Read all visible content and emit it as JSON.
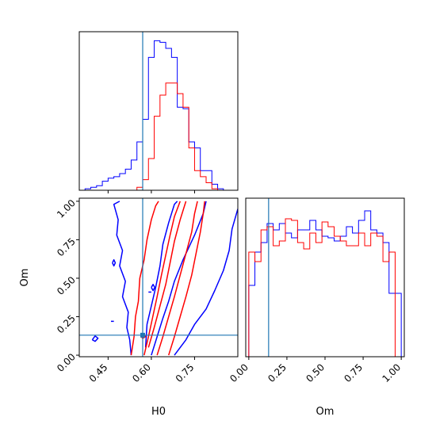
{
  "chart_data": [
    {
      "type": "step-histogram",
      "panel": "H0-marginal",
      "xlim": [
        0.35,
        0.9
      ],
      "x_edges": [
        0.35,
        0.37,
        0.39,
        0.41,
        0.43,
        0.45,
        0.47,
        0.49,
        0.51,
        0.53,
        0.55,
        0.57,
        0.59,
        0.61,
        0.63,
        0.65,
        0.67,
        0.69,
        0.71,
        0.73,
        0.75,
        0.77,
        0.79,
        0.81,
        0.83,
        0.85,
        0.87,
        0.89
      ],
      "series": [
        {
          "color": "#0000ff",
          "counts": [
            0,
            1,
            2,
            3,
            6,
            8,
            9,
            11,
            14,
            20,
            32,
            47,
            88,
            99,
            98,
            94,
            88,
            55,
            54,
            32,
            28,
            13,
            13,
            4,
            1,
            0,
            0
          ]
        },
        {
          "color": "#ff0000",
          "counts": [
            0,
            0,
            0,
            0,
            0,
            0,
            0,
            0,
            0,
            0,
            2,
            7,
            21,
            49,
            63,
            71,
            71,
            64,
            55,
            28,
            13,
            9,
            5,
            1,
            0,
            0,
            0
          ]
        }
      ],
      "ylim": [
        0,
        105
      ],
      "truth_line": 0.57
    },
    {
      "type": "contour",
      "panel": "H0-Om-joint",
      "xlim": [
        0.35,
        0.9
      ],
      "ylim": [
        -0.01,
        1.02
      ],
      "x_ticks": [
        "0.45",
        "0.60",
        "0.75"
      ],
      "x_tick_values": [
        0.45,
        0.6,
        0.75
      ],
      "y_ticks": [
        "0.00",
        "0.25",
        "0.50",
        "0.75",
        "1.00"
      ],
      "y_tick_values": [
        0,
        0.25,
        0.5,
        0.75,
        1.0
      ],
      "xlabel": "H0",
      "ylabel": "Om",
      "truth_lines": {
        "x": 0.57,
        "y": 0.13
      },
      "series": [
        {
          "color": "#0000ff",
          "contours": [
            [
              [
                0.53,
                0.0
              ],
              [
                0.525,
                0.1
              ],
              [
                0.515,
                0.18
              ],
              [
                0.52,
                0.28
              ],
              [
                0.5,
                0.38
              ],
              [
                0.51,
                0.48
              ],
              [
                0.49,
                0.58
              ],
              [
                0.5,
                0.68
              ],
              [
                0.48,
                0.78
              ],
              [
                0.485,
                0.88
              ],
              [
                0.47,
                0.98
              ],
              [
                0.49,
                1.0
              ]
            ],
            [
              [
                0.6,
                0.0
              ],
              [
                0.62,
                0.12
              ],
              [
                0.64,
                0.24
              ],
              [
                0.66,
                0.35
              ],
              [
                0.68,
                0.48
              ],
              [
                0.71,
                0.62
              ],
              [
                0.75,
                0.78
              ],
              [
                0.78,
                0.92
              ],
              [
                0.79,
                1.0
              ]
            ],
            [
              [
                0.58,
                0.05
              ],
              [
                0.585,
                0.2
              ],
              [
                0.6,
                0.32
              ],
              [
                0.615,
                0.44
              ],
              [
                0.63,
                0.58
              ],
              [
                0.64,
                0.72
              ],
              [
                0.66,
                0.86
              ],
              [
                0.68,
                0.98
              ],
              [
                0.69,
                1.0
              ]
            ],
            [
              [
                0.68,
                0.0
              ],
              [
                0.72,
                0.1
              ],
              [
                0.75,
                0.2
              ],
              [
                0.79,
                0.3
              ],
              [
                0.82,
                0.42
              ],
              [
                0.85,
                0.55
              ],
              [
                0.87,
                0.68
              ],
              [
                0.88,
                0.82
              ],
              [
                0.9,
                0.95
              ]
            ],
            [
              [
                0.395,
                0.1
              ],
              [
                0.405,
                0.125
              ],
              [
                0.415,
                0.11
              ],
              [
                0.405,
                0.09
              ],
              [
                0.395,
                0.1
              ]
            ],
            [
              [
                0.465,
                0.6
              ],
              [
                0.47,
                0.62
              ],
              [
                0.475,
                0.6
              ],
              [
                0.47,
                0.58
              ],
              [
                0.465,
                0.6
              ]
            ],
            [
              [
                0.6,
                0.44
              ],
              [
                0.606,
                0.46
              ],
              [
                0.612,
                0.44
              ],
              [
                0.606,
                0.42
              ],
              [
                0.6,
                0.44
              ]
            ],
            [
              [
                0.59,
                0.41
              ],
              [
                0.6,
                0.41
              ]
            ],
            [
              [
                0.46,
                0.22
              ],
              [
                0.47,
                0.22
              ]
            ]
          ]
        },
        {
          "color": "#ff0000",
          "contours": [
            [
              [
                0.53,
                0.0
              ],
              [
                0.54,
                0.12
              ],
              [
                0.545,
                0.25
              ],
              [
                0.555,
                0.35
              ],
              [
                0.56,
                0.5
              ],
              [
                0.575,
                0.62
              ],
              [
                0.585,
                0.75
              ],
              [
                0.6,
                0.88
              ],
              [
                0.615,
                0.97
              ],
              [
                0.625,
                1.0
              ]
            ],
            [
              [
                0.575,
                0.0
              ],
              [
                0.59,
                0.12
              ],
              [
                0.605,
                0.25
              ],
              [
                0.62,
                0.38
              ],
              [
                0.635,
                0.52
              ],
              [
                0.65,
                0.65
              ],
              [
                0.665,
                0.78
              ],
              [
                0.68,
                0.9
              ],
              [
                0.7,
                1.0
              ]
            ],
            [
              [
                0.59,
                0.05
              ],
              [
                0.61,
                0.18
              ],
              [
                0.63,
                0.32
              ],
              [
                0.65,
                0.46
              ],
              [
                0.665,
                0.6
              ],
              [
                0.68,
                0.74
              ],
              [
                0.7,
                0.88
              ],
              [
                0.72,
                1.0
              ]
            ],
            [
              [
                0.62,
                0.0
              ],
              [
                0.64,
                0.12
              ],
              [
                0.66,
                0.25
              ],
              [
                0.68,
                0.38
              ],
              [
                0.7,
                0.52
              ],
              [
                0.72,
                0.66
              ],
              [
                0.74,
                0.8
              ],
              [
                0.75,
                0.92
              ],
              [
                0.76,
                1.0
              ]
            ],
            [
              [
                0.66,
                0.0
              ],
              [
                0.68,
                0.12
              ],
              [
                0.7,
                0.25
              ],
              [
                0.72,
                0.38
              ],
              [
                0.74,
                0.52
              ],
              [
                0.755,
                0.66
              ],
              [
                0.77,
                0.8
              ],
              [
                0.78,
                0.92
              ],
              [
                0.785,
                1.0
              ]
            ],
            [
              [
                0.565,
                0.12
              ],
              [
                0.575,
                0.13
              ],
              [
                0.58,
                0.12
              ],
              [
                0.57,
                0.11
              ],
              [
                0.565,
                0.12
              ]
            ]
          ]
        }
      ]
    },
    {
      "type": "step-histogram",
      "panel": "Om-marginal",
      "xlim": [
        -0.02,
        1.02
      ],
      "x_edges": [
        0.0,
        0.04,
        0.08,
        0.12,
        0.16,
        0.2,
        0.24,
        0.28,
        0.32,
        0.36,
        0.4,
        0.44,
        0.48,
        0.52,
        0.56,
        0.6,
        0.64,
        0.68,
        0.72,
        0.76,
        0.8,
        0.84,
        0.88,
        0.92,
        0.96,
        1.0
      ],
      "x_ticks": [
        "0.00",
        "0.25",
        "0.50",
        "0.75",
        "1.00"
      ],
      "x_tick_values": [
        0.0,
        0.25,
        0.5,
        0.75,
        1.0
      ],
      "xlabel": "Om",
      "ylim": [
        0,
        100
      ],
      "truth_line": 0.13,
      "series": [
        {
          "color": "#0000ff",
          "counts": [
            45,
            66,
            72,
            84,
            80,
            84,
            78,
            75,
            80,
            80,
            86,
            80,
            76,
            75,
            73,
            76,
            82,
            78,
            86,
            92,
            80,
            78,
            72,
            40,
            40
          ]
        },
        {
          "color": "#ff0000",
          "counts": [
            66,
            60,
            80,
            82,
            70,
            73,
            87,
            86,
            72,
            68,
            78,
            72,
            85,
            82,
            76,
            73,
            70,
            70,
            78,
            70,
            78,
            76,
            60,
            66,
            0
          ]
        }
      ]
    }
  ]
}
